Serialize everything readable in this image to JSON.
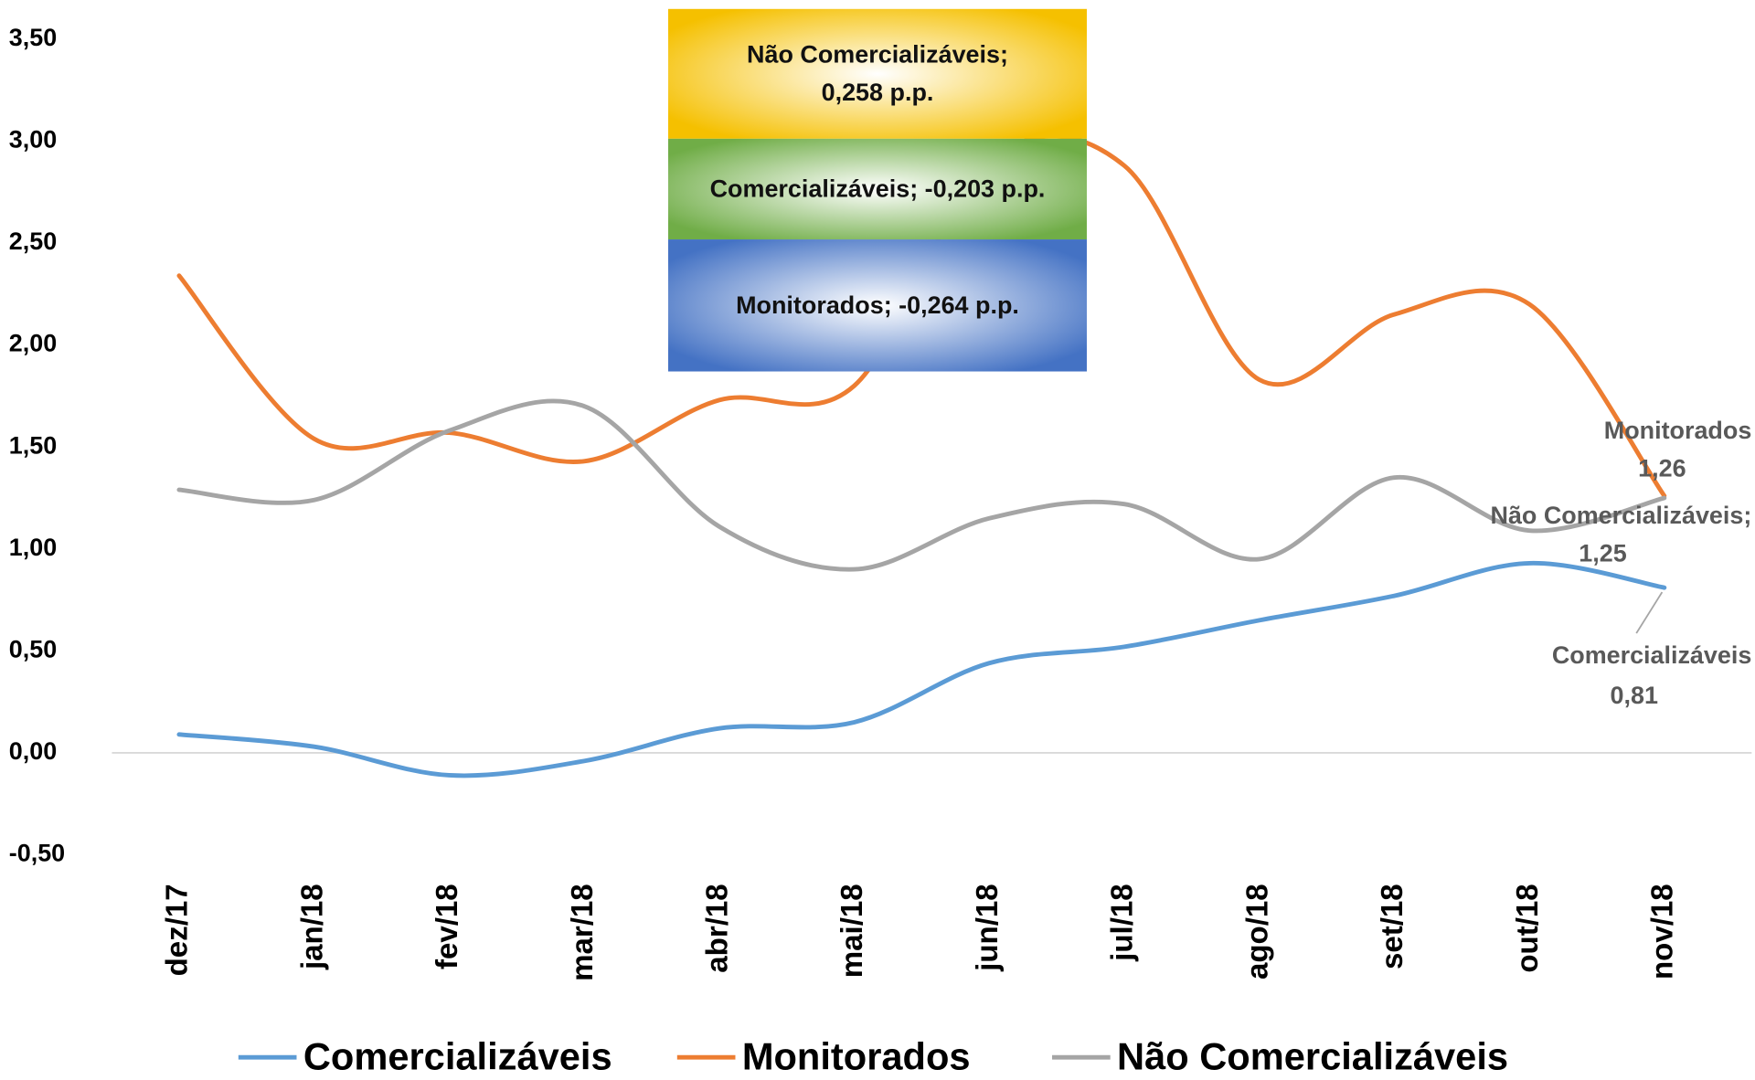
{
  "chart_data": {
    "type": "line",
    "categories": [
      "dez/17",
      "jan/18",
      "fev/18",
      "mar/18",
      "abr/18",
      "mai/18",
      "jun/18",
      "jul/18",
      "ago/18",
      "set/18",
      "out/18",
      "nov/18"
    ],
    "series": [
      {
        "name": "Comercializáveis",
        "color": "#5b9bd5",
        "values": [
          0.09,
          0.03,
          -0.11,
          -0.04,
          0.12,
          0.15,
          0.44,
          0.52,
          0.65,
          0.77,
          0.93,
          0.81
        ],
        "value_labels": [
          null,
          null,
          null,
          null,
          null,
          null,
          null,
          null,
          null,
          null,
          null,
          "0,81"
        ]
      },
      {
        "name": "Monitorados",
        "color": "#ed7d31",
        "values": [
          2.34,
          1.54,
          1.57,
          1.43,
          1.73,
          1.8,
          2.9,
          2.88,
          1.83,
          2.15,
          2.2,
          1.26
        ],
        "value_labels": [
          null,
          null,
          null,
          null,
          null,
          null,
          null,
          null,
          null,
          null,
          null,
          "1,26"
        ]
      },
      {
        "name": "Não Comercializáveis",
        "color": "#a5a5a5",
        "values": [
          1.29,
          1.24,
          1.58,
          1.7,
          1.11,
          0.9,
          1.15,
          1.22,
          0.95,
          1.35,
          1.09,
          1.25
        ],
        "value_labels": [
          null,
          null,
          null,
          null,
          null,
          null,
          null,
          null,
          null,
          null,
          null,
          "1,25"
        ]
      }
    ],
    "end_label_names": [
      "Comercializáveis",
      "Monitorados",
      "Não Comercializáveis;"
    ],
    "ylim": [
      -0.5,
      3.5
    ],
    "yticks": [
      {
        "value": -0.5,
        "label": "-0,50"
      },
      {
        "value": 0,
        "label": "0,00"
      },
      {
        "value": 0.5,
        "label": "0,50"
      },
      {
        "value": 1,
        "label": "1,00"
      },
      {
        "value": 1.5,
        "label": "1,50"
      },
      {
        "value": 2,
        "label": "2,00"
      },
      {
        "value": 2.5,
        "label": "2,50"
      },
      {
        "value": 3,
        "label": "3,00"
      },
      {
        "value": 3.5,
        "label": "3,50"
      }
    ],
    "annotations": [
      {
        "text": "Não Comercializáveis; 0,258 p.p.",
        "color": "#f5c000"
      },
      {
        "text": "Comercializáveis; -0,203 p.p.",
        "color": "#70ad47"
      },
      {
        "text": "Monitorados; -0,264 p.p.",
        "color": "#4472c4"
      }
    ],
    "legend": "bottom"
  }
}
